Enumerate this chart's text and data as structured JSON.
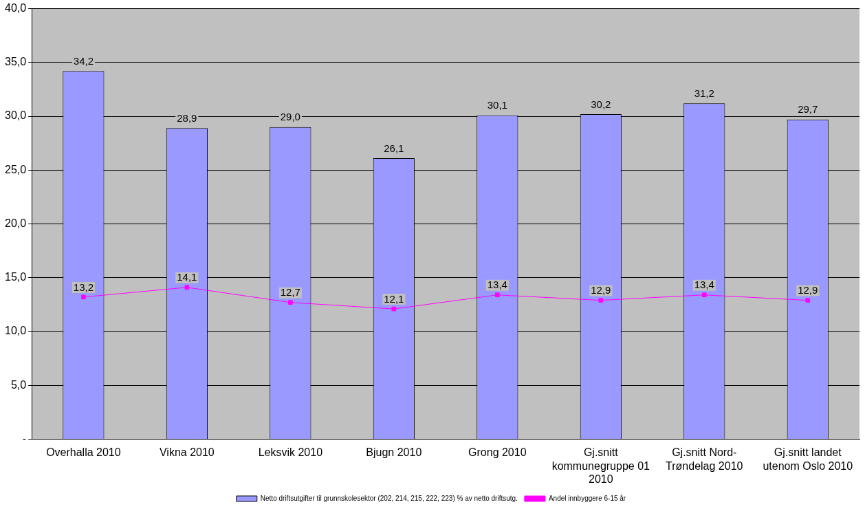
{
  "chart_data": {
    "type": "bar",
    "categories": [
      "Overhalla 2010",
      "Vikna 2010",
      "Leksvik 2010",
      "Bjugn 2010",
      "Grong 2010",
      "Gj.snitt kommunegruppe 01 2010",
      "Gj.snitt Nord-Trøndelag 2010",
      "Gj.snitt landet utenom Oslo 2010"
    ],
    "series": [
      {
        "name": "Netto driftsutgifter til grunnskolesektor (202, 214, 215, 222, 223) % av netto driftsutg.",
        "color": "#9999ff",
        "values": [
          34.2,
          28.9,
          29.0,
          26.1,
          30.1,
          30.2,
          31.2,
          29.7
        ],
        "value_labels": [
          "34,2",
          "28,9",
          "29,0",
          "26,1",
          "30,1",
          "30,2",
          "31,2",
          "29,7"
        ]
      },
      {
        "name": "Andel innbyggere 6-15 år",
        "type": "line",
        "color": "#ff00ff",
        "marker": "square",
        "values": [
          13.2,
          14.1,
          12.7,
          12.1,
          13.4,
          12.9,
          13.4,
          12.9
        ],
        "value_labels": [
          "13,2",
          "14,1",
          "12,7",
          "12,1",
          "13,4",
          "12,9",
          "13,4",
          "12,9"
        ]
      }
    ],
    "ylim": [
      0,
      40
    ],
    "yticks": [
      {
        "value": 0,
        "label": "-"
      },
      {
        "value": 5,
        "label": "5,0"
      },
      {
        "value": 10,
        "label": "10,0"
      },
      {
        "value": 15,
        "label": "15,0"
      },
      {
        "value": 20,
        "label": "20,0"
      },
      {
        "value": 25,
        "label": "25,0"
      },
      {
        "value": 30,
        "label": "30,0"
      },
      {
        "value": 35,
        "label": "35,0"
      },
      {
        "value": 40,
        "label": "40,0"
      }
    ],
    "grid": "y",
    "legend": "bottom"
  }
}
